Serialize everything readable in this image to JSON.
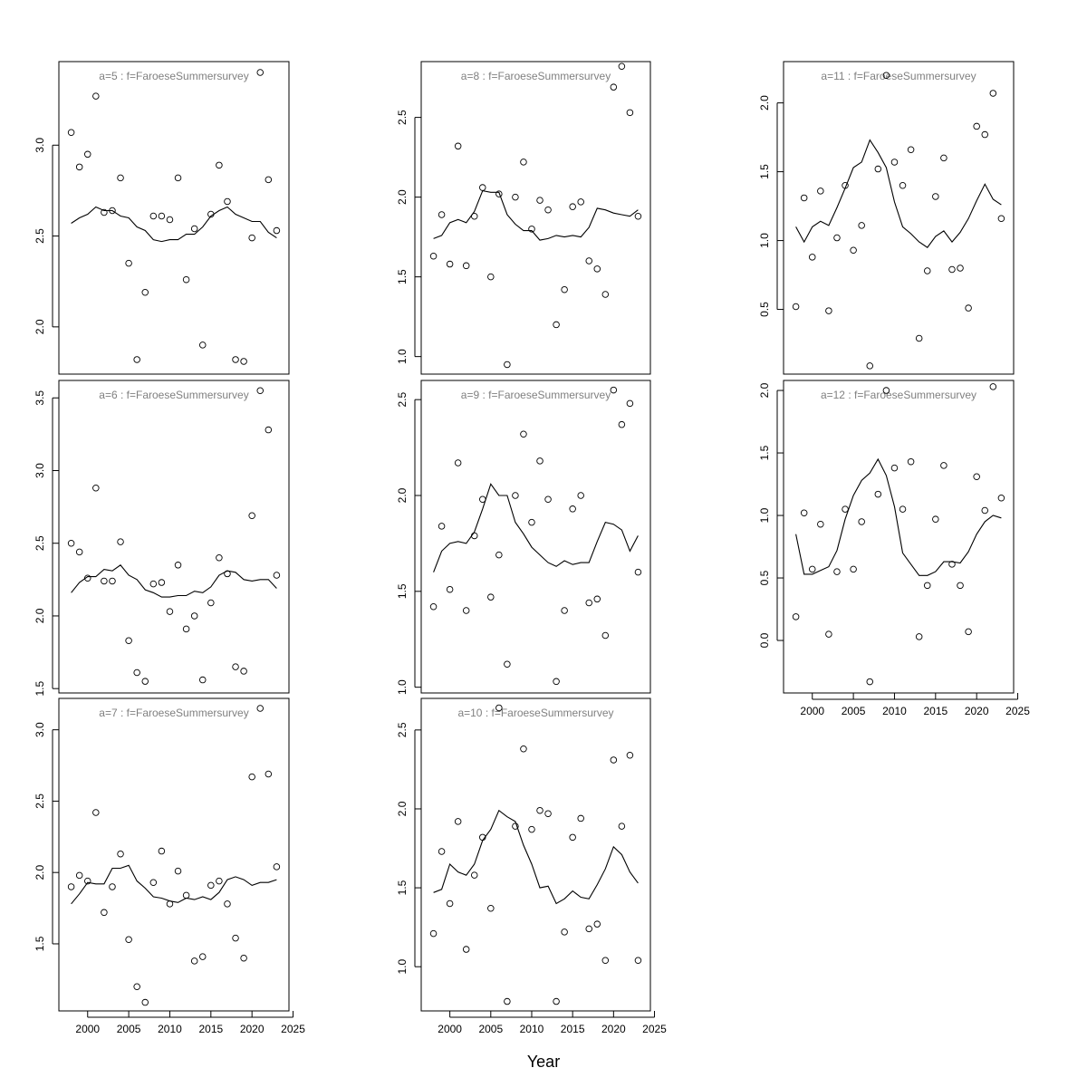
{
  "chart_data": {
    "type": "scatter",
    "xlabel": "Year",
    "xlim": [
      1996.5,
      2024.5
    ],
    "x": [
      1998,
      1999,
      2000,
      2001,
      2002,
      2003,
      2004,
      2005,
      2006,
      2007,
      2008,
      2009,
      2010,
      2011,
      2012,
      2013,
      2014,
      2015,
      2016,
      2017,
      2018,
      2019,
      2020,
      2021,
      2022,
      2023
    ],
    "xticks": [
      2000,
      2005,
      2010,
      2015,
      2020,
      2025
    ],
    "panels": [
      {
        "title": "a=5  :  f=FaroeseSummersurvey",
        "ylim": [
          1.74,
          3.46
        ],
        "yticks": [
          2.0,
          2.5,
          3.0
        ],
        "show_xaxis": false,
        "points": [
          3.07,
          2.88,
          2.95,
          3.27,
          2.63,
          2.64,
          2.82,
          2.35,
          1.82,
          2.19,
          2.61,
          2.61,
          2.59,
          2.82,
          2.26,
          2.54,
          1.9,
          2.62,
          2.89,
          2.69,
          1.82,
          1.81,
          2.49,
          3.4,
          2.81,
          2.53
        ],
        "line": [
          2.57,
          2.6,
          2.62,
          2.66,
          2.64,
          2.64,
          2.61,
          2.6,
          2.55,
          2.53,
          2.48,
          2.47,
          2.48,
          2.48,
          2.51,
          2.51,
          2.55,
          2.61,
          2.64,
          2.66,
          2.62,
          2.6,
          2.58,
          2.58,
          2.52,
          2.49
        ]
      },
      {
        "title": "a=6  :  f=FaroeseSummersurvey",
        "ylim": [
          1.47,
          3.62
        ],
        "yticks": [
          1.5,
          2.0,
          2.5,
          3.0,
          3.5
        ],
        "show_xaxis": false,
        "points": [
          2.5,
          2.44,
          2.26,
          2.88,
          2.24,
          2.24,
          2.51,
          1.83,
          1.61,
          1.55,
          2.22,
          2.23,
          2.03,
          2.35,
          1.91,
          2.0,
          1.56,
          2.09,
          2.4,
          2.29,
          1.65,
          1.62,
          2.69,
          3.55,
          3.28,
          2.28
        ],
        "line": [
          2.16,
          2.23,
          2.27,
          2.27,
          2.32,
          2.31,
          2.35,
          2.28,
          2.25,
          2.18,
          2.16,
          2.13,
          2.13,
          2.14,
          2.14,
          2.17,
          2.16,
          2.2,
          2.28,
          2.31,
          2.3,
          2.25,
          2.24,
          2.25,
          2.25,
          2.19
        ]
      },
      {
        "title": "a=7  :  f=FaroeseSummersurvey",
        "ylim": [
          1.03,
          3.22
        ],
        "yticks": [
          1.5,
          2.0,
          2.5,
          3.0
        ],
        "show_xaxis": true,
        "points": [
          1.9,
          1.98,
          1.94,
          2.42,
          1.72,
          1.9,
          2.13,
          1.53,
          1.2,
          1.09,
          1.93,
          2.15,
          1.78,
          2.01,
          1.84,
          1.38,
          1.41,
          1.91,
          1.94,
          1.78,
          1.54,
          1.4,
          2.67,
          3.15,
          2.69,
          2.04
        ],
        "line": [
          1.78,
          1.85,
          1.93,
          1.92,
          1.92,
          2.03,
          2.03,
          2.05,
          1.94,
          1.89,
          1.83,
          1.82,
          1.8,
          1.79,
          1.82,
          1.81,
          1.83,
          1.81,
          1.86,
          1.95,
          1.97,
          1.95,
          1.91,
          1.93,
          1.93,
          1.95
        ]
      },
      {
        "title": "a=8  :  f=FaroeseSummersurvey",
        "ylim": [
          0.89,
          2.85
        ],
        "yticks": [
          1.0,
          1.5,
          2.0,
          2.5
        ],
        "show_xaxis": false,
        "points": [
          1.63,
          1.89,
          1.58,
          2.32,
          1.57,
          1.88,
          2.06,
          1.5,
          2.02,
          0.95,
          2.0,
          2.22,
          1.8,
          1.98,
          1.92,
          1.2,
          1.42,
          1.94,
          1.97,
          1.6,
          1.55,
          1.39,
          2.69,
          2.82,
          2.53,
          1.88
        ],
        "line": [
          1.74,
          1.76,
          1.84,
          1.86,
          1.84,
          1.91,
          2.04,
          2.03,
          2.03,
          1.89,
          1.83,
          1.79,
          1.79,
          1.73,
          1.74,
          1.76,
          1.75,
          1.76,
          1.75,
          1.81,
          1.93,
          1.92,
          1.9,
          1.89,
          1.88,
          1.92
        ]
      },
      {
        "title": "a=9  :  f=FaroeseSummersurvey",
        "ylim": [
          0.97,
          2.6
        ],
        "yticks": [
          1.0,
          1.5,
          2.0,
          2.5
        ],
        "show_xaxis": false,
        "points": [
          1.42,
          1.84,
          1.51,
          2.17,
          1.4,
          1.79,
          1.98,
          1.47,
          1.69,
          1.12,
          2.0,
          2.32,
          1.86,
          2.18,
          1.98,
          1.03,
          1.4,
          1.93,
          2.0,
          1.44,
          1.46,
          1.27,
          2.55,
          2.37,
          2.48,
          1.6
        ],
        "line": [
          1.6,
          1.71,
          1.75,
          1.76,
          1.75,
          1.81,
          1.93,
          2.06,
          2.0,
          2.0,
          1.86,
          1.8,
          1.73,
          1.69,
          1.65,
          1.63,
          1.66,
          1.64,
          1.65,
          1.65,
          1.76,
          1.86,
          1.85,
          1.82,
          1.71,
          1.79
        ]
      },
      {
        "title": "a=10  :  f=FaroeseSummersurvey",
        "ylim": [
          0.72,
          2.7
        ],
        "yticks": [
          1.0,
          1.5,
          2.0,
          2.5
        ],
        "show_xaxis": true,
        "points": [
          1.21,
          1.73,
          1.4,
          1.92,
          1.11,
          1.58,
          1.82,
          1.37,
          2.64,
          0.78,
          1.89,
          2.38,
          1.87,
          1.99,
          1.97,
          0.78,
          1.22,
          1.82,
          1.94,
          1.24,
          1.27,
          1.04,
          2.31,
          1.89,
          2.34,
          1.04
        ],
        "line": [
          1.47,
          1.49,
          1.65,
          1.6,
          1.58,
          1.65,
          1.8,
          1.87,
          1.99,
          1.95,
          1.92,
          1.77,
          1.65,
          1.5,
          1.51,
          1.4,
          1.43,
          1.48,
          1.44,
          1.43,
          1.52,
          1.62,
          1.76,
          1.71,
          1.6,
          1.53
        ]
      },
      {
        "title": "a=11  :  f=FaroeseSummersurvey",
        "ylim": [
          0.03,
          2.3
        ],
        "yticks": [
          0.5,
          1.0,
          1.5,
          2.0
        ],
        "show_xaxis": false,
        "points": [
          0.52,
          1.31,
          0.88,
          1.36,
          0.49,
          1.02,
          1.4,
          0.93,
          1.11,
          0.09,
          1.52,
          2.2,
          1.57,
          1.4,
          1.66,
          0.29,
          0.78,
          1.32,
          1.6,
          0.79,
          0.8,
          0.51,
          1.83,
          1.77,
          2.07,
          1.16
        ],
        "line": [
          1.1,
          0.99,
          1.1,
          1.14,
          1.11,
          1.24,
          1.38,
          1.53,
          1.57,
          1.73,
          1.64,
          1.53,
          1.28,
          1.1,
          1.05,
          0.99,
          0.95,
          1.03,
          1.07,
          0.99,
          1.06,
          1.16,
          1.29,
          1.41,
          1.3,
          1.26
        ]
      },
      {
        "title": "a=12  :  f=FaroeseSummersurvey",
        "ylim": [
          -0.42,
          2.08
        ],
        "yticks": [
          0.0,
          0.5,
          1.0,
          1.5,
          2.0
        ],
        "show_xaxis": true,
        "points": [
          0.19,
          1.02,
          0.57,
          0.93,
          0.05,
          0.55,
          1.05,
          0.57,
          0.95,
          -0.33,
          1.17,
          2.0,
          1.38,
          1.05,
          1.43,
          0.03,
          0.44,
          0.97,
          1.4,
          0.61,
          0.44,
          0.07,
          1.31,
          1.04,
          2.03,
          1.14
        ],
        "line": [
          0.85,
          0.53,
          0.53,
          0.56,
          0.59,
          0.72,
          0.97,
          1.16,
          1.28,
          1.34,
          1.45,
          1.32,
          1.07,
          0.7,
          0.61,
          0.52,
          0.52,
          0.55,
          0.63,
          0.63,
          0.62,
          0.71,
          0.85,
          0.95,
          1.0,
          0.98
        ]
      }
    ]
  }
}
